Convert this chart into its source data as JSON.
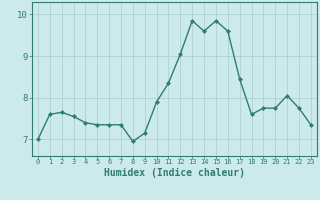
{
  "x": [
    0,
    1,
    2,
    3,
    4,
    5,
    6,
    7,
    8,
    9,
    10,
    11,
    12,
    13,
    14,
    15,
    16,
    17,
    18,
    19,
    20,
    21,
    22,
    23
  ],
  "y": [
    7.0,
    7.6,
    7.65,
    7.55,
    7.4,
    7.35,
    7.35,
    7.35,
    6.95,
    7.15,
    7.9,
    8.35,
    9.05,
    9.85,
    9.6,
    9.85,
    9.6,
    8.45,
    7.6,
    7.75,
    7.75,
    8.05,
    7.75,
    7.35
  ],
  "line_color": "#2e7d6e",
  "marker": "D",
  "marker_size": 2,
  "bg_color": "#cdeaea",
  "grid_color": "#a8cccc",
  "axis_color": "#2e7d6e",
  "xlabel": "Humidex (Indice chaleur)",
  "xlabel_fontsize": 7,
  "ylim": [
    6.6,
    10.3
  ],
  "xlim": [
    -0.5,
    23.5
  ],
  "yticks": [
    7,
    8,
    9,
    10
  ],
  "xticks": [
    0,
    1,
    2,
    3,
    4,
    5,
    6,
    7,
    8,
    9,
    10,
    11,
    12,
    13,
    14,
    15,
    16,
    17,
    18,
    19,
    20,
    21,
    22,
    23
  ],
  "xtick_fontsize": 5,
  "ytick_fontsize": 6.5,
  "line_width": 1.0
}
